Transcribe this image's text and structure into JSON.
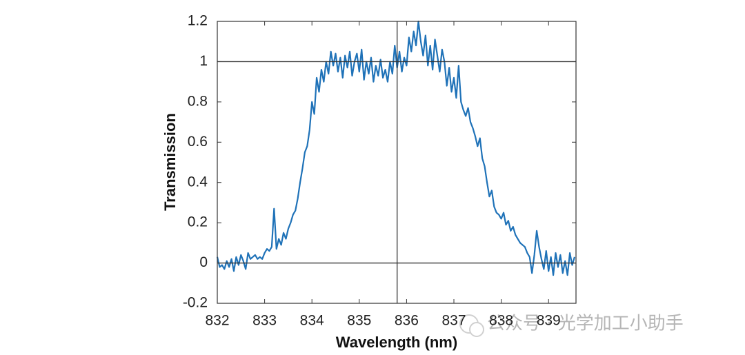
{
  "chart_data": {
    "type": "line",
    "xlabel": "Wavelength (nm)",
    "ylabel": "Transmission",
    "watermark": "公众号 · 光学加工小助手",
    "xlim": [
      832,
      839.58
    ],
    "ylim": [
      -0.2,
      1.2
    ],
    "xticks": [
      832,
      833,
      834,
      835,
      836,
      837,
      838,
      839
    ],
    "yticks": [
      -0.2,
      0,
      0.2,
      0.4,
      0.6,
      0.8,
      1,
      1.2
    ],
    "reference_lines": {
      "y": [
        0,
        1
      ],
      "x": [
        835.8
      ]
    },
    "grid": false,
    "x": [
      832,
      832.05,
      832.1,
      832.15,
      832.2,
      832.25,
      832.3,
      832.35,
      832.4,
      832.45,
      832.5,
      832.55,
      832.6,
      832.65,
      832.7,
      832.75,
      832.8,
      832.85,
      832.9,
      832.95,
      833,
      833.05,
      833.1,
      833.15,
      833.2,
      833.25,
      833.3,
      833.35,
      833.4,
      833.45,
      833.5,
      833.55,
      833.6,
      833.65,
      833.7,
      833.75,
      833.8,
      833.85,
      833.9,
      833.95,
      834,
      834.05,
      834.1,
      834.15,
      834.2,
      834.25,
      834.3,
      834.35,
      834.4,
      834.45,
      834.5,
      834.55,
      834.6,
      834.65,
      834.7,
      834.75,
      834.8,
      834.85,
      834.9,
      834.95,
      835,
      835.05,
      835.1,
      835.15,
      835.2,
      835.25,
      835.3,
      835.35,
      835.4,
      835.45,
      835.5,
      835.55,
      835.6,
      835.65,
      835.7,
      835.75,
      835.8,
      835.85,
      835.9,
      835.95,
      836,
      836.05,
      836.1,
      836.15,
      836.2,
      836.25,
      836.3,
      836.35,
      836.4,
      836.45,
      836.5,
      836.55,
      836.6,
      836.65,
      836.7,
      836.75,
      836.8,
      836.85,
      836.9,
      836.95,
      837,
      837.05,
      837.1,
      837.15,
      837.2,
      837.25,
      837.3,
      837.35,
      837.4,
      837.45,
      837.5,
      837.55,
      837.6,
      837.65,
      837.7,
      837.75,
      837.8,
      837.85,
      837.9,
      837.95,
      838,
      838.05,
      838.1,
      838.15,
      838.2,
      838.25,
      838.3,
      838.35,
      838.4,
      838.45,
      838.5,
      838.55,
      838.6,
      838.65,
      838.7,
      838.75,
      838.8,
      838.85,
      838.9,
      838.95,
      839,
      839.05,
      839.1,
      839.15,
      839.2,
      839.25,
      839.3,
      839.35,
      839.4,
      839.45,
      839.5,
      839.55
    ],
    "series": [
      {
        "color": "#1f72b8",
        "values": [
          0.03,
          -0.02,
          -0.01,
          -0.03,
          0.01,
          -0.02,
          0.02,
          -0.04,
          0.03,
          -0.01,
          0.04,
          0.01,
          -0.03,
          0.05,
          0.02,
          0.03,
          0.04,
          0.02,
          0.03,
          0.02,
          0.05,
          0.07,
          0.06,
          0.08,
          0.27,
          0.07,
          0.12,
          0.09,
          0.15,
          0.12,
          0.17,
          0.2,
          0.24,
          0.26,
          0.32,
          0.4,
          0.47,
          0.55,
          0.58,
          0.66,
          0.8,
          0.74,
          0.92,
          0.85,
          0.96,
          0.9,
          1.0,
          0.94,
          1.05,
          0.98,
          1.04,
          0.95,
          1.02,
          0.92,
          1.03,
          0.97,
          1.05,
          0.93,
          1.0,
          1.04,
          0.95,
          1.06,
          0.91,
          1.0,
          0.94,
          1.02,
          0.9,
          0.98,
          0.93,
          1.01,
          0.92,
          0.96,
          0.9,
          1.0,
          0.94,
          1.08,
          0.97,
          1.05,
          0.95,
          1.02,
          0.98,
          1.12,
          1.05,
          1.15,
          1.08,
          1.2,
          1.1,
          1.03,
          1.13,
          0.98,
          1.08,
          0.96,
          1.11,
          1.03,
          0.95,
          1.06,
          1.0,
          0.88,
          0.97,
          0.85,
          0.92,
          0.82,
          0.98,
          0.8,
          0.76,
          0.73,
          0.77,
          0.7,
          0.67,
          0.63,
          0.58,
          0.62,
          0.52,
          0.48,
          0.4,
          0.33,
          0.36,
          0.28,
          0.25,
          0.24,
          0.22,
          0.25,
          0.19,
          0.21,
          0.16,
          0.18,
          0.14,
          0.12,
          0.1,
          0.09,
          0.08,
          0.05,
          0.03,
          -0.05,
          0.04,
          0.16,
          0.08,
          0.02,
          -0.03,
          0.06,
          -0.04,
          0.03,
          -0.06,
          0.05,
          -0.02,
          0.04,
          -0.05,
          0.01,
          -0.06,
          0.05,
          -0.01,
          0.03
        ]
      }
    ]
  }
}
